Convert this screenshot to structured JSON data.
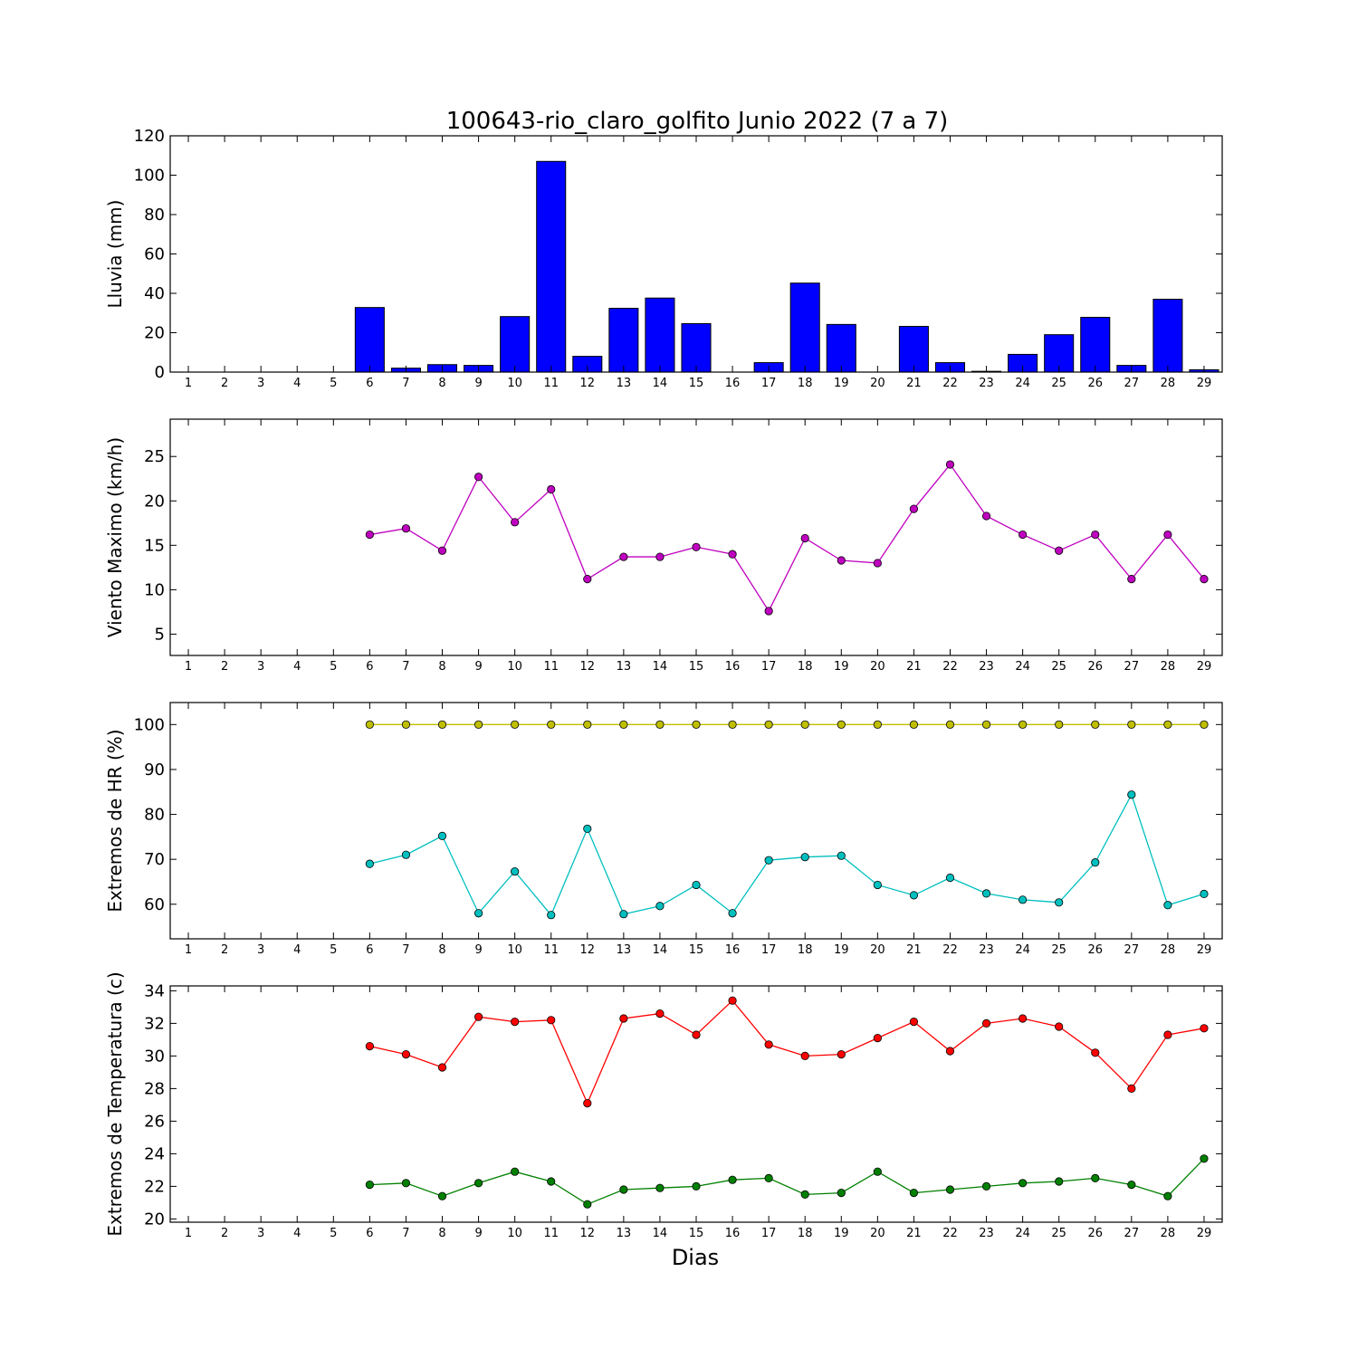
{
  "chart_data": [
    {
      "type": "bar",
      "title": "100643-rio_claro_golfito Junio 2022  (7 a 7)",
      "ylabel": "Lluvia (mm)",
      "xlabel": "",
      "x": [
        1,
        2,
        3,
        4,
        5,
        6,
        7,
        8,
        9,
        10,
        11,
        12,
        13,
        14,
        15,
        16,
        17,
        18,
        19,
        20,
        21,
        22,
        23,
        24,
        25,
        26,
        27,
        28,
        29
      ],
      "ylim": [
        0,
        120
      ],
      "yticks": [
        0,
        20,
        40,
        60,
        80,
        100,
        120
      ],
      "series": [
        {
          "color": "#0000ff",
          "values": [
            null,
            null,
            null,
            null,
            null,
            32.8,
            2.0,
            3.8,
            3.4,
            28.2,
            107.0,
            8.0,
            32.4,
            37.6,
            24.6,
            0.0,
            4.8,
            45.2,
            24.2,
            0.0,
            23.2,
            4.8,
            0.4,
            9.0,
            19.0,
            27.8,
            3.4,
            37.0,
            1.2
          ]
        }
      ]
    },
    {
      "type": "line",
      "title": "",
      "ylabel": "Viento Maximo (km/h)",
      "xlabel": "",
      "x": [
        1,
        2,
        3,
        4,
        5,
        6,
        7,
        8,
        9,
        10,
        11,
        12,
        13,
        14,
        15,
        16,
        17,
        18,
        19,
        20,
        21,
        22,
        23,
        24,
        25,
        26,
        27,
        28,
        29
      ],
      "ylim": [
        2.6,
        29.2
      ],
      "yticks": [
        5,
        10,
        15,
        20,
        25
      ],
      "series": [
        {
          "color": "#bf00bf",
          "values": [
            null,
            null,
            null,
            null,
            null,
            16.2,
            16.9,
            14.4,
            22.7,
            17.6,
            21.3,
            11.2,
            13.7,
            13.7,
            14.8,
            14.0,
            7.6,
            15.8,
            13.3,
            13.0,
            19.1,
            24.1,
            18.3,
            16.2,
            14.4,
            16.2,
            11.2,
            16.2,
            11.2
          ]
        }
      ]
    },
    {
      "type": "line",
      "title": "",
      "ylabel": "Extremos de HR (%)",
      "xlabel": "",
      "x": [
        1,
        2,
        3,
        4,
        5,
        6,
        7,
        8,
        9,
        10,
        11,
        12,
        13,
        14,
        15,
        16,
        17,
        18,
        19,
        20,
        21,
        22,
        23,
        24,
        25,
        26,
        27,
        28,
        29
      ],
      "ylim": [
        52.3,
        104.9
      ],
      "yticks": [
        60,
        70,
        80,
        90,
        100
      ],
      "series": [
        {
          "color": "#bfbf00",
          "values": [
            null,
            null,
            null,
            null,
            null,
            100,
            100,
            100,
            100,
            100,
            100,
            100,
            100,
            100,
            100,
            100,
            100,
            100,
            100,
            100,
            100,
            100,
            100,
            100,
            100,
            100,
            100,
            100,
            100
          ]
        },
        {
          "color": "#00bfbf",
          "values": [
            null,
            null,
            null,
            null,
            null,
            69.0,
            71.0,
            75.2,
            58.0,
            67.3,
            57.6,
            76.8,
            57.8,
            59.6,
            64.3,
            58.0,
            69.8,
            70.5,
            70.8,
            64.3,
            62.0,
            65.9,
            62.4,
            61.0,
            60.4,
            69.3,
            84.4,
            59.8,
            62.3
          ]
        }
      ]
    },
    {
      "type": "line",
      "title": "",
      "ylabel": "Extremos de Temperatura (c)",
      "xlabel": "Dias",
      "x": [
        1,
        2,
        3,
        4,
        5,
        6,
        7,
        8,
        9,
        10,
        11,
        12,
        13,
        14,
        15,
        16,
        17,
        18,
        19,
        20,
        21,
        22,
        23,
        24,
        25,
        26,
        27,
        28,
        29
      ],
      "ylim": [
        19.8,
        34.3
      ],
      "yticks": [
        20,
        22,
        24,
        26,
        28,
        30,
        32,
        34
      ],
      "series": [
        {
          "color": "#ff0000",
          "values": [
            null,
            null,
            null,
            null,
            null,
            30.6,
            30.1,
            29.3,
            32.4,
            32.1,
            32.2,
            27.1,
            32.3,
            32.6,
            31.3,
            33.4,
            30.7,
            30.0,
            30.1,
            31.1,
            32.1,
            30.3,
            32.0,
            32.3,
            31.8,
            30.2,
            28.0,
            31.3,
            31.7
          ]
        },
        {
          "color": "#008000",
          "values": [
            null,
            null,
            null,
            null,
            null,
            22.1,
            22.2,
            21.4,
            22.2,
            22.9,
            22.3,
            20.9,
            21.8,
            21.9,
            22.0,
            22.4,
            22.5,
            21.5,
            21.6,
            22.9,
            21.6,
            21.8,
            22.0,
            22.2,
            22.3,
            22.5,
            22.1,
            21.4,
            23.7
          ]
        }
      ]
    }
  ]
}
